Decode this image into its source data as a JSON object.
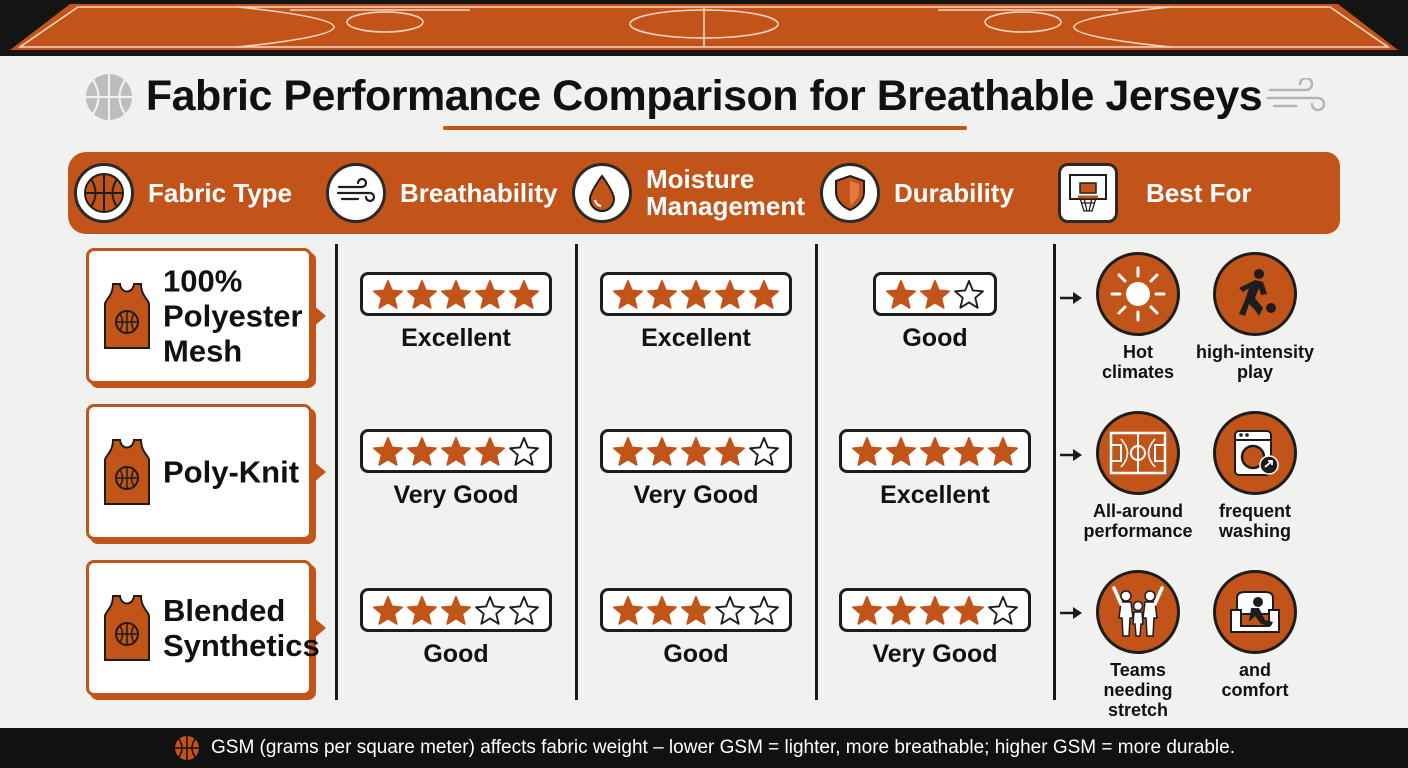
{
  "title": "Fabric Performance Comparison for Breathable Jerseys",
  "colors": {
    "accent": "#c2541a",
    "dark": "#111111",
    "background": "#f1f1f0",
    "star_fill": "#c2541a"
  },
  "header": {
    "fabric_type": "Fabric Type",
    "breathability": "Breathability",
    "moisture_line1": "Moisture",
    "moisture_line2": "Management",
    "durability": "Durability",
    "best_for": "Best For"
  },
  "rows": [
    {
      "fabric": "100% Polyester Mesh",
      "breathability": {
        "stars": 5,
        "label": "Excellent"
      },
      "moisture": {
        "stars": 5,
        "label": "Excellent"
      },
      "durability": {
        "stars": 2,
        "max": 3,
        "label": "Good"
      },
      "best_for": [
        {
          "line1": "Hot",
          "line2": "climates",
          "icon": "sun-icon"
        },
        {
          "line1": "high-intensity",
          "line2": "play",
          "icon": "dribbling-player-icon"
        }
      ]
    },
    {
      "fabric": "Poly-Knit",
      "breathability": {
        "stars": 4,
        "label": "Very Good"
      },
      "moisture": {
        "stars": 4,
        "label": "Very Good"
      },
      "durability": {
        "stars": 5,
        "label": "Excellent"
      },
      "best_for": [
        {
          "line1": "All-around",
          "line2": "performance",
          "icon": "basketball-court-icon"
        },
        {
          "line1": "frequent",
          "line2": "washing",
          "icon": "washing-machine-icon"
        }
      ]
    },
    {
      "fabric": "Blended Synthetics",
      "breathability": {
        "stars": 3,
        "label": "Good"
      },
      "moisture": {
        "stars": 3,
        "label": "Good"
      },
      "durability": {
        "stars": 4,
        "label": "Very Good"
      },
      "best_for": [
        {
          "line1": "Teams needing",
          "line2": "stretch",
          "icon": "team-stretch-icon"
        },
        {
          "line1": "and",
          "line2": "comfort",
          "icon": "armchair-comfort-icon"
        }
      ]
    }
  ],
  "footer": "GSM (grams per square meter) affects fabric weight – lower GSM = lighter, more breathable; higher GSM = more durable."
}
